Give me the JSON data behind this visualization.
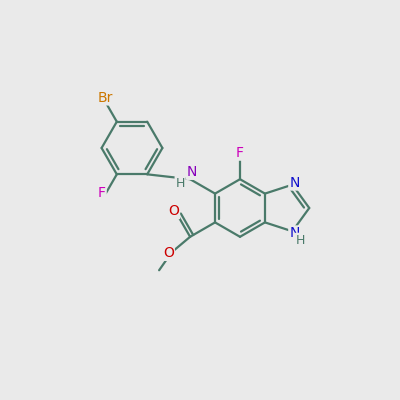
{
  "background_color": "#eaeaea",
  "bond_color": "#4a7a6a",
  "bond_width": 1.6,
  "atom_colors": {
    "N_blue": "#1010cc",
    "N_purple": "#8800bb",
    "O": "#cc0000",
    "F": "#cc00bb",
    "Br": "#cc7700"
  },
  "font_size_atom": 10,
  "font_size_h": 9,
  "xlim": [
    0,
    10
  ],
  "ylim": [
    0,
    10
  ]
}
